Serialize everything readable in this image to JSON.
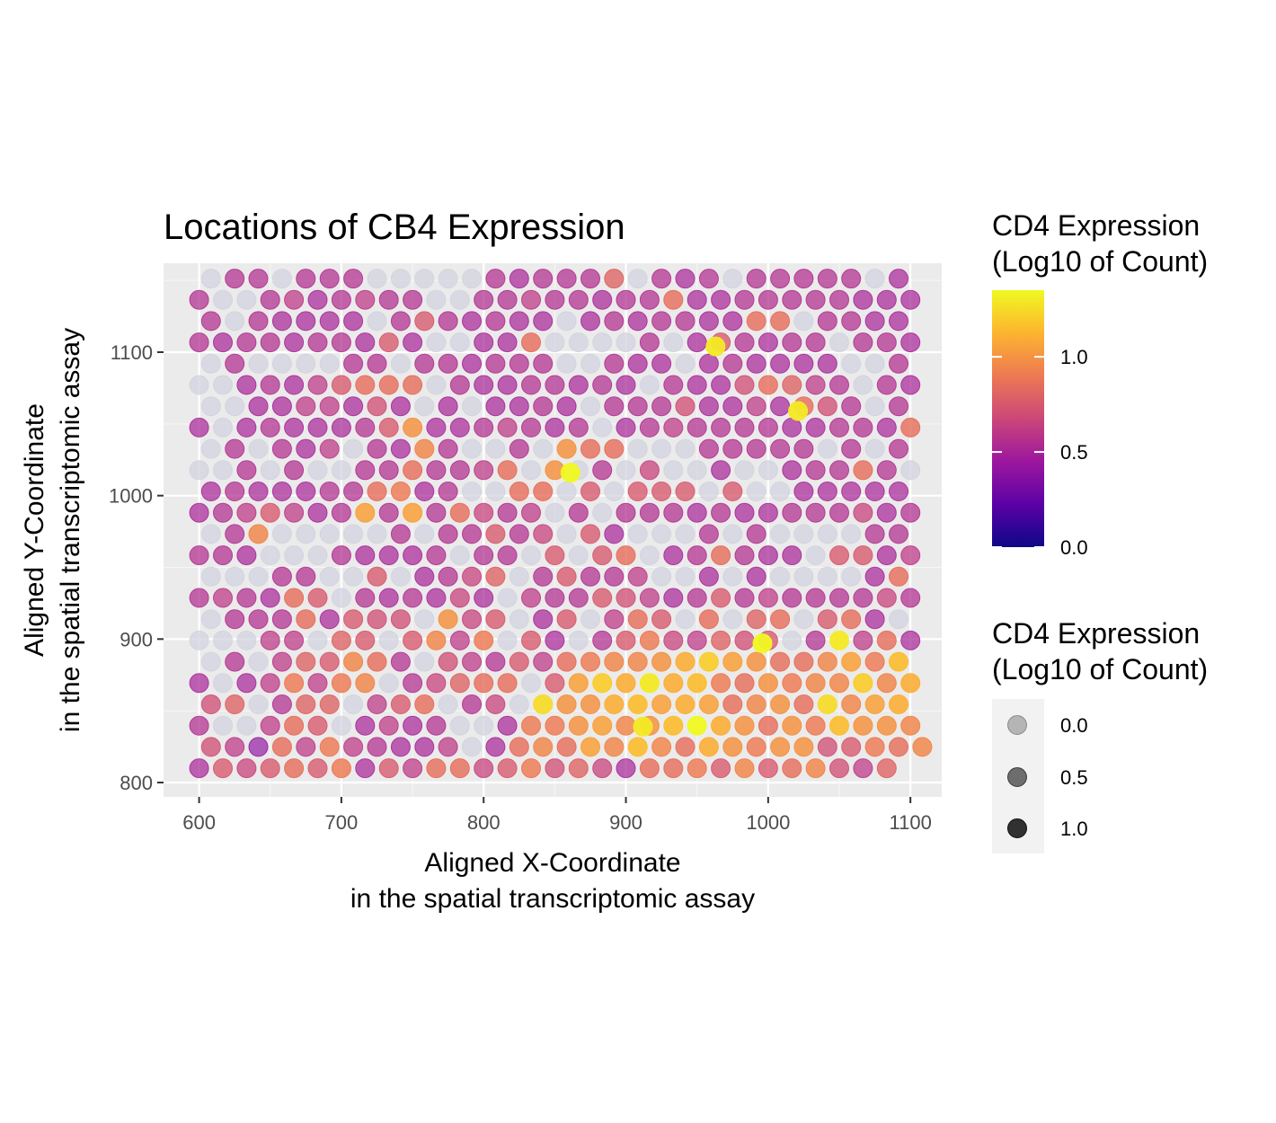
{
  "chart_data": {
    "type": "scatter",
    "title": "Locations of CB4 Expression",
    "xlabel": [
      "Aligned X-Coordinate",
      "in the spatial transcriptomic assay"
    ],
    "ylabel": [
      "Aligned Y-Coordinate",
      "in the spatial transcriptomic assay"
    ],
    "xlim": [
      575,
      1122
    ],
    "ylim": [
      790,
      1162
    ],
    "x_ticks": [
      600,
      700,
      800,
      900,
      1000,
      1100
    ],
    "y_ticks": [
      800,
      900,
      1000,
      1100
    ],
    "grid": true,
    "panel_background": "#ebebeb",
    "zero_color": "#d3d3e0",
    "palette": [
      "#0d0887",
      "#5c01a6",
      "#9c179e",
      "#cc4778",
      "#ed7953",
      "#fdb42f",
      "#f0f921"
    ],
    "color_range": [
      0,
      1.35
    ],
    "legend_placement": "right",
    "legends": [
      {
        "kind": "colorbar",
        "title": [
          "CD4 Expression",
          "(Log10 of Count)"
        ],
        "ticks": [
          0.0,
          0.5,
          1.0
        ],
        "tick_labels": [
          "0.0",
          "0.5",
          "1.0"
        ]
      },
      {
        "kind": "alpha",
        "title": [
          "CD4 Expression",
          "(Log10 of Count)"
        ],
        "keys": [
          0.0,
          0.5,
          1.0
        ],
        "key_labels": [
          "0.0",
          "0.5",
          "1.0"
        ]
      }
    ],
    "grid_layout": {
      "x_start": 600,
      "x_step": 16.667,
      "y_start": 810,
      "y_step": 14.84,
      "rows": 24,
      "cols": 30
    },
    "values": [
      [
        0.5,
        0.75,
        0.65,
        0.75,
        0.85,
        0.75,
        0.9,
        0.5,
        0.75,
        0.6,
        0.85,
        0.85,
        0.65,
        0.75,
        0.9,
        0.7,
        0.8,
        0.65,
        0.5,
        0.85,
        0.85,
        0.9,
        0.75,
        0.95,
        0.75,
        0.85,
        0.95,
        0.7,
        0.6,
        0.8
      ],
      [
        0.7,
        0.6,
        0.4,
        0.85,
        0.6,
        0.9,
        0.6,
        0.55,
        0.5,
        0.5,
        0.6,
        0.0,
        0.5,
        0.85,
        0.95,
        0.85,
        1.05,
        0.95,
        1.15,
        0.95,
        0.85,
        1.1,
        1.0,
        0.9,
        1.0,
        1.0,
        0.7,
        0.75,
        0.9,
        0.85,
        0.95
      ],
      [
        0.55,
        0.0,
        0.0,
        0.6,
        0.85,
        0.75,
        0.0,
        0.5,
        0.6,
        0.5,
        0.55,
        0.0,
        0.0,
        0.5,
        0.9,
        0.9,
        1.0,
        1.05,
        0.95,
        1.0,
        1.15,
        1.35,
        1.1,
        1.0,
        0.85,
        1.0,
        0.9,
        1.15,
        1.0,
        1.0,
        0.95,
        0.8
      ],
      [
        0.7,
        0.8,
        0.0,
        0.55,
        0.8,
        0.8,
        0.0,
        0.6,
        0.75,
        0.85,
        0.0,
        0.55,
        0.65,
        0.0,
        1.25,
        1.0,
        1.0,
        1.1,
        1.15,
        1.05,
        1.1,
        1.05,
        0.85,
        0.95,
        1.0,
        0.85,
        1.25,
        0.95,
        1.05,
        1.1
      ],
      [
        0.5,
        0.0,
        0.5,
        0.6,
        0.9,
        0.6,
        0.9,
        0.95,
        0.0,
        0.55,
        0.65,
        0.8,
        0.85,
        0.85,
        0.0,
        0.75,
        1.05,
        1.2,
        1.1,
        1.3,
        1.1,
        1.15,
        0.9,
        0.85,
        1.0,
        0.9,
        0.95,
        0.95,
        1.2,
        0.95,
        1.1
      ],
      [
        0.0,
        0.55,
        0.0,
        0.6,
        0.8,
        0.75,
        0.95,
        0.85,
        0.55,
        0.0,
        0.7,
        0.6,
        0.55,
        0.75,
        0.6,
        0.85,
        0.9,
        0.95,
        0.95,
        1.0,
        1.1,
        1.2,
        1.05,
        1.0,
        0.85,
        0.85,
        0.95,
        1.05,
        0.9,
        1.15
      ],
      [
        0.0,
        0.0,
        0.0,
        0.6,
        0.6,
        0.0,
        0.8,
        0.75,
        0.0,
        0.75,
        0.95,
        0.6,
        0.9,
        0.0,
        0.75,
        0.5,
        0.0,
        0.55,
        0.75,
        0.9,
        0.65,
        0.6,
        0.8,
        0.7,
        0.75,
        0.0,
        0.55,
        1.3,
        0.6,
        0.85,
        0.5
      ],
      [
        0.0,
        0.55,
        0.55,
        0.55,
        0.85,
        0.5,
        0.75,
        0.7,
        0.7,
        0.0,
        1.0,
        0.65,
        0.75,
        0.0,
        0.5,
        0.75,
        0.0,
        0.6,
        0.85,
        0.75,
        0.0,
        0.85,
        0.0,
        0.8,
        0.85,
        0.0,
        0.75,
        0.85,
        0.5,
        0.0
      ],
      [
        0.55,
        0.6,
        0.55,
        0.5,
        0.85,
        0.75,
        0.0,
        0.55,
        0.5,
        0.55,
        0.5,
        0.65,
        0.5,
        0.0,
        0.6,
        0.55,
        0.55,
        0.75,
        0.7,
        0.6,
        0.5,
        0.55,
        0.75,
        0.55,
        0.6,
        0.55,
        0.55,
        0.55,
        0.55,
        0.65,
        0.55
      ],
      [
        0.0,
        0.0,
        0.0,
        0.55,
        0.55,
        0.0,
        0.0,
        0.75,
        0.0,
        0.5,
        0.55,
        0.65,
        0.8,
        0.0,
        0.55,
        0.75,
        0.55,
        0.55,
        0.6,
        0.0,
        0.0,
        0.5,
        0.0,
        0.5,
        0.0,
        0.0,
        0.0,
        0.0,
        0.5,
        0.85
      ],
      [
        0.55,
        0.55,
        0.5,
        0.0,
        0.0,
        0.0,
        0.55,
        0.5,
        0.5,
        0.5,
        0.55,
        0.0,
        0.55,
        0.55,
        0.0,
        0.75,
        0.0,
        0.75,
        0.85,
        0.0,
        0.5,
        0.55,
        0.85,
        0.55,
        0.5,
        0.5,
        0.0,
        0.75,
        0.75,
        0.5,
        0.6
      ],
      [
        0.0,
        0.55,
        0.95,
        0.0,
        0.0,
        0.0,
        0.0,
        0.0,
        0.55,
        0.0,
        0.55,
        0.55,
        0.75,
        0.55,
        0.65,
        0.0,
        0.75,
        0.5,
        0.0,
        0.0,
        0.0,
        0.55,
        0.0,
        0.55,
        0.0,
        0.0,
        0.0,
        0.0,
        0.55,
        0.55
      ],
      [
        0.5,
        0.55,
        0.6,
        0.75,
        0.6,
        0.5,
        0.55,
        1.05,
        0.55,
        1.05,
        0.55,
        0.85,
        0.65,
        0.55,
        0.6,
        0.0,
        0.55,
        0.0,
        0.55,
        0.55,
        0.55,
        0.5,
        0.55,
        0.5,
        0.5,
        0.55,
        0.55,
        0.55,
        0.65,
        0.5,
        0.55
      ],
      [
        0.5,
        0.55,
        0.5,
        0.5,
        0.5,
        0.55,
        0.55,
        0.85,
        0.9,
        0.5,
        0.55,
        0.0,
        0.0,
        0.85,
        0.85,
        0.0,
        0.75,
        0.0,
        0.75,
        0.75,
        0.75,
        0.0,
        0.75,
        0.0,
        0.0,
        0.5,
        0.5,
        0.5,
        0.5,
        0.5
      ],
      [
        0.0,
        0.0,
        0.55,
        0.0,
        0.55,
        0.0,
        0.0,
        0.55,
        0.55,
        0.85,
        0.55,
        0.55,
        0.6,
        0.85,
        0.0,
        1.0,
        0.0,
        0.55,
        0.0,
        0.65,
        0.0,
        0.0,
        0.5,
        0.0,
        0.0,
        0.5,
        0.55,
        0.55,
        0.85,
        0.55,
        0.0
      ],
      [
        0.0,
        0.55,
        0.0,
        0.55,
        0.5,
        0.6,
        0.0,
        0.55,
        0.5,
        0.95,
        0.55,
        0.0,
        0.0,
        0.55,
        0.0,
        1.0,
        0.85,
        0.85,
        0.0,
        0.0,
        0.0,
        0.55,
        0.55,
        0.55,
        0.55,
        0.55,
        0.0,
        0.55,
        0.0,
        0.55
      ],
      [
        0.5,
        0.0,
        0.5,
        0.55,
        0.5,
        0.5,
        0.5,
        0.55,
        0.75,
        1.0,
        0.5,
        0.5,
        0.55,
        0.6,
        0.55,
        0.5,
        0.55,
        0.0,
        0.5,
        0.55,
        0.6,
        0.55,
        0.55,
        0.55,
        0.55,
        0.5,
        0.5,
        0.55,
        0.55,
        0.5,
        0.85
      ],
      [
        0.0,
        0.0,
        0.5,
        0.5,
        0.6,
        0.6,
        0.5,
        0.7,
        0.5,
        0.0,
        0.5,
        0.0,
        0.5,
        0.5,
        0.55,
        0.5,
        0.0,
        0.55,
        0.55,
        0.55,
        0.7,
        0.5,
        0.5,
        0.6,
        0.5,
        0.85,
        0.7,
        0.55,
        0.0,
        0.55
      ],
      [
        0.0,
        0.0,
        0.5,
        0.55,
        0.5,
        0.6,
        0.75,
        0.85,
        0.85,
        0.85,
        0.0,
        0.55,
        0.5,
        0.5,
        0.55,
        0.55,
        0.5,
        0.55,
        0.5,
        0.0,
        0.55,
        0.5,
        0.5,
        0.7,
        0.85,
        0.8,
        0.6,
        0.55,
        0.0,
        0.55,
        0.5
      ],
      [
        0.0,
        0.55,
        0.0,
        0.0,
        0.0,
        0.0,
        0.55,
        0.55,
        0.0,
        0.55,
        0.55,
        0.5,
        0.55,
        0.55,
        0.55,
        0.0,
        0.0,
        0.55,
        0.5,
        0.5,
        0.0,
        0.5,
        0.55,
        0.5,
        0.5,
        0.5,
        0.5,
        0.0,
        0.0,
        0.55
      ],
      [
        0.55,
        0.5,
        0.55,
        0.55,
        0.5,
        0.55,
        0.55,
        0.5,
        0.75,
        0.5,
        0.0,
        0.0,
        0.5,
        0.5,
        0.85,
        0.0,
        0.0,
        0.0,
        0.0,
        0.55,
        0.0,
        0.5,
        0.75,
        0.55,
        0.5,
        0.55,
        0.55,
        0.0,
        0.55,
        0.55,
        0.5
      ],
      [
        0.55,
        0.0,
        0.55,
        0.5,
        0.5,
        0.5,
        0.5,
        0.0,
        0.55,
        0.75,
        0.55,
        0.5,
        0.55,
        0.5,
        0.5,
        0.0,
        0.5,
        0.55,
        0.5,
        0.55,
        0.55,
        0.5,
        0.5,
        0.85,
        0.85,
        0.0,
        0.55,
        0.55,
        0.5,
        0.5
      ],
      [
        0.55,
        0.0,
        0.0,
        0.55,
        0.6,
        0.5,
        0.55,
        0.6,
        0.55,
        0.55,
        0.0,
        0.0,
        0.55,
        0.55,
        0.6,
        0.55,
        0.55,
        0.5,
        0.55,
        0.55,
        0.85,
        0.5,
        0.5,
        0.55,
        0.55,
        0.55,
        0.55,
        0.55,
        0.5,
        0.5,
        0.5
      ],
      [
        0.0,
        0.55,
        0.55,
        0.0,
        0.55,
        0.55,
        0.55,
        0.0,
        0.0,
        0.0,
        0.0,
        0.0,
        0.55,
        0.5,
        0.55,
        0.55,
        0.55,
        0.8,
        0.0,
        0.55,
        0.5,
        0.55,
        0.0,
        0.55,
        0.55,
        0.55,
        0.55,
        0.55,
        0.0,
        0.5
      ]
    ],
    "col_offsets_odd_rows": true,
    "highlights": [
      {
        "x": 861,
        "y": 1016,
        "value": 1.35
      },
      {
        "x": 963,
        "y": 1104,
        "value": 1.3
      },
      {
        "x": 996,
        "y": 897,
        "value": 1.35
      },
      {
        "x": 912,
        "y": 839,
        "value": 1.3
      },
      {
        "x": 1021,
        "y": 1059,
        "value": 1.3
      }
    ]
  }
}
